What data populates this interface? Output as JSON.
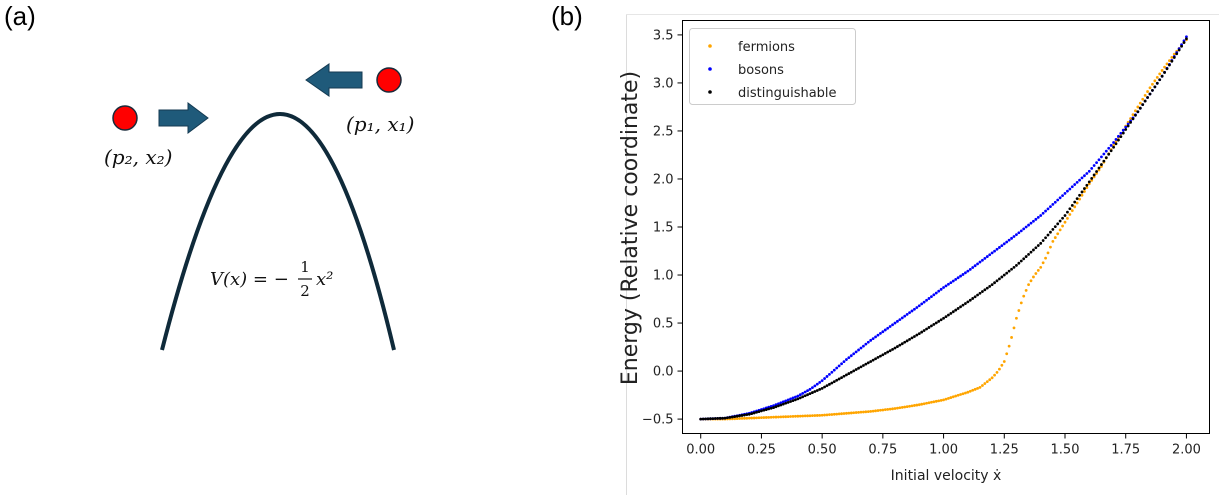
{
  "panel_a": {
    "label": "(a)",
    "particle_1": "(p₁, x₁)",
    "particle_2": "(p₂, x₂)",
    "potential_prefix": "V(x) = −",
    "frac_num": "1",
    "frac_den": "2",
    "potential_suffix": "x²",
    "colors": {
      "particle": "#ff0000",
      "arrow": "#1f5a7a",
      "curve": "#0f2a3a"
    }
  },
  "panel_b": {
    "label": "(b)"
  },
  "chart_data": {
    "type": "scatter",
    "xlabel": "Initial velocity ẋ",
    "ylabel": "Energy (Relative coordinate)",
    "xlim": [
      -0.075,
      2.095
    ],
    "ylim": [
      -0.65,
      3.65
    ],
    "xticks": [
      "0.00",
      "0.25",
      "0.50",
      "0.75",
      "1.00",
      "1.25",
      "1.50",
      "1.75",
      "2.00"
    ],
    "yticks": [
      "−0.5",
      "0.0",
      "0.5",
      "1.0",
      "1.5",
      "2.0",
      "2.5",
      "3.0",
      "3.5"
    ],
    "grid": false,
    "legend_position": "top-left",
    "series": [
      {
        "name": "fermions",
        "color": "#ffa500",
        "x": [
          0.0,
          0.1,
          0.2,
          0.3,
          0.4,
          0.5,
          0.6,
          0.7,
          0.8,
          0.9,
          1.0,
          1.05,
          1.1,
          1.15,
          1.2,
          1.225,
          1.25,
          1.275,
          1.3,
          1.325,
          1.35,
          1.375,
          1.4,
          1.425,
          1.45,
          1.5,
          1.55,
          1.6,
          1.65,
          1.7,
          1.75,
          1.8,
          1.85,
          1.9,
          1.95,
          2.0
        ],
        "y": [
          -0.5,
          -0.5,
          -0.49,
          -0.48,
          -0.47,
          -0.46,
          -0.44,
          -0.42,
          -0.39,
          -0.35,
          -0.3,
          -0.26,
          -0.22,
          -0.17,
          -0.07,
          0.0,
          0.1,
          0.3,
          0.55,
          0.75,
          0.9,
          1.0,
          1.08,
          1.2,
          1.35,
          1.55,
          1.75,
          1.95,
          2.13,
          2.35,
          2.55,
          2.75,
          2.95,
          3.13,
          3.3,
          3.45
        ]
      },
      {
        "name": "bosons",
        "color": "#0000ff",
        "x": [
          0.0,
          0.1,
          0.2,
          0.3,
          0.4,
          0.45,
          0.5,
          0.6,
          0.7,
          0.8,
          0.9,
          1.0,
          1.1,
          1.2,
          1.3,
          1.4,
          1.5,
          1.6,
          1.7,
          1.8,
          1.9,
          2.0
        ],
        "y": [
          -0.5,
          -0.49,
          -0.44,
          -0.36,
          -0.26,
          -0.19,
          -0.1,
          0.12,
          0.32,
          0.5,
          0.68,
          0.87,
          1.04,
          1.23,
          1.42,
          1.62,
          1.85,
          2.08,
          2.38,
          2.7,
          3.07,
          3.48
        ]
      },
      {
        "name": "distinguishable",
        "color": "#000000",
        "x": [
          0.0,
          0.1,
          0.2,
          0.3,
          0.4,
          0.5,
          0.6,
          0.7,
          0.8,
          0.9,
          1.0,
          1.1,
          1.2,
          1.3,
          1.4,
          1.5,
          1.6,
          1.7,
          1.8,
          1.9,
          2.0
        ],
        "y": [
          -0.5,
          -0.49,
          -0.45,
          -0.38,
          -0.29,
          -0.18,
          -0.04,
          0.1,
          0.24,
          0.39,
          0.55,
          0.72,
          0.9,
          1.1,
          1.33,
          1.62,
          1.97,
          2.33,
          2.7,
          3.07,
          3.46
        ]
      }
    ]
  }
}
